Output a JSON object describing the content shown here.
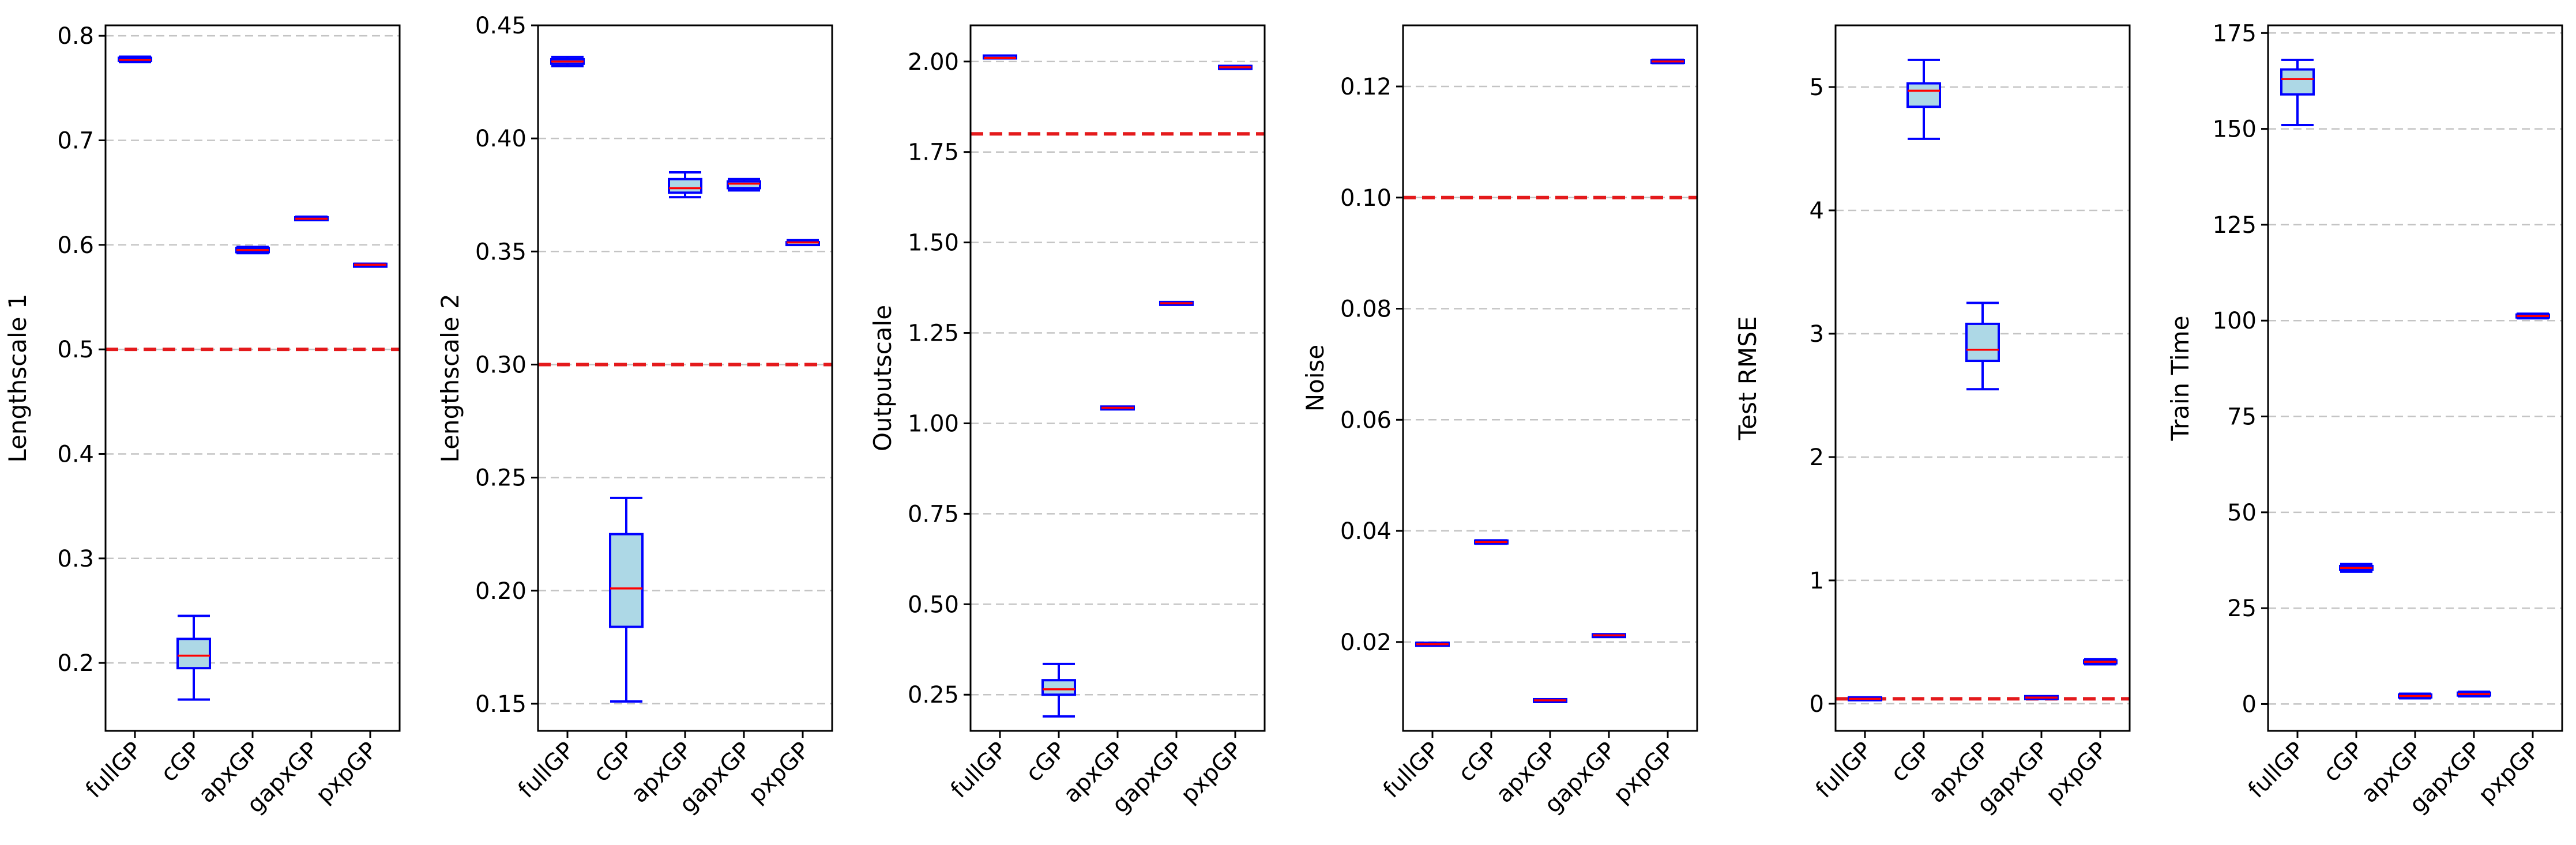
{
  "chart_data": [
    {
      "type": "box",
      "ylabel": "Lengthscale 1",
      "categories": [
        "fullGP",
        "cGP",
        "apxGP",
        "gapxGP",
        "pxpGP"
      ],
      "ylim": [
        0.135,
        0.81
      ],
      "yticks": [
        0.2,
        0.3,
        0.4,
        0.5,
        0.6,
        0.7,
        0.8
      ],
      "ytick_labels": [
        "0.2",
        "0.3",
        "0.4",
        "0.5",
        "0.6",
        "0.7",
        "0.8"
      ],
      "reference_line": 0.5,
      "boxes": [
        {
          "min": 0.775,
          "q1": 0.776,
          "median": 0.777,
          "q3": 0.779,
          "max": 0.78
        },
        {
          "min": 0.165,
          "q1": 0.195,
          "median": 0.207,
          "q3": 0.223,
          "max": 0.245
        },
        {
          "min": 0.592,
          "q1": 0.593,
          "median": 0.595,
          "q3": 0.597,
          "max": 0.598
        },
        {
          "min": 0.624,
          "q1": 0.624,
          "median": 0.625,
          "q3": 0.626,
          "max": 0.627
        },
        {
          "min": 0.58,
          "q1": 0.58,
          "median": 0.581,
          "q3": 0.581,
          "max": 0.582
        }
      ]
    },
    {
      "type": "box",
      "ylabel": "Lengthscale 2",
      "categories": [
        "fullGP",
        "cGP",
        "apxGP",
        "gapxGP",
        "pxpGP"
      ],
      "ylim": [
        0.138,
        0.45
      ],
      "yticks": [
        0.15,
        0.2,
        0.25,
        0.3,
        0.35,
        0.4,
        0.45
      ],
      "ytick_labels": [
        "0.15",
        "0.20",
        "0.25",
        "0.30",
        "0.35",
        "0.40",
        "0.45"
      ],
      "reference_line": 0.3,
      "boxes": [
        {
          "min": 0.432,
          "q1": 0.433,
          "median": 0.434,
          "q3": 0.435,
          "max": 0.436
        },
        {
          "min": 0.151,
          "q1": 0.184,
          "median": 0.201,
          "q3": 0.225,
          "max": 0.241
        },
        {
          "min": 0.374,
          "q1": 0.376,
          "median": 0.378,
          "q3": 0.382,
          "max": 0.385
        },
        {
          "min": 0.377,
          "q1": 0.378,
          "median": 0.38,
          "q3": 0.381,
          "max": 0.382
        },
        {
          "min": 0.353,
          "q1": 0.353,
          "median": 0.354,
          "q3": 0.354,
          "max": 0.355
        }
      ]
    },
    {
      "type": "box",
      "ylabel": "Outputscale",
      "categories": [
        "fullGP",
        "cGP",
        "apxGP",
        "gapxGP",
        "pxpGP"
      ],
      "ylim": [
        0.15,
        2.1
      ],
      "yticks": [
        0.25,
        0.5,
        0.75,
        1.0,
        1.25,
        1.5,
        1.75,
        2.0
      ],
      "ytick_labels": [
        "0.25",
        "0.50",
        "0.75",
        "1.00",
        "1.25",
        "1.50",
        "1.75",
        "2.00"
      ],
      "reference_line": 1.8,
      "boxes": [
        {
          "min": 2.01,
          "q1": 2.01,
          "median": 2.01,
          "q3": 2.015,
          "max": 2.015
        },
        {
          "min": 0.19,
          "q1": 0.25,
          "median": 0.265,
          "q3": 0.29,
          "max": 0.335
        },
        {
          "min": 1.04,
          "q1": 1.04,
          "median": 1.043,
          "q3": 1.045,
          "max": 1.045
        },
        {
          "min": 1.33,
          "q1": 1.33,
          "median": 1.332,
          "q3": 1.333,
          "max": 1.333
        },
        {
          "min": 1.98,
          "q1": 1.982,
          "median": 1.984,
          "q3": 1.986,
          "max": 1.988
        }
      ]
    },
    {
      "type": "box",
      "ylabel": "Noise",
      "categories": [
        "fullGP",
        "cGP",
        "apxGP",
        "gapxGP",
        "pxpGP"
      ],
      "ylim": [
        0.004,
        0.131
      ],
      "yticks": [
        0.02,
        0.04,
        0.06,
        0.08,
        0.1,
        0.12
      ],
      "ytick_labels": [
        "0.02",
        "0.04",
        "0.06",
        "0.08",
        "0.10",
        "0.12"
      ],
      "reference_line": 0.1,
      "boxes": [
        {
          "min": 0.0195,
          "q1": 0.0195,
          "median": 0.0196,
          "q3": 0.0197,
          "max": 0.0197
        },
        {
          "min": 0.0377,
          "q1": 0.0378,
          "median": 0.038,
          "q3": 0.0382,
          "max": 0.0383
        },
        {
          "min": 0.0094,
          "q1": 0.0094,
          "median": 0.0095,
          "q3": 0.0095,
          "max": 0.0096
        },
        {
          "min": 0.0211,
          "q1": 0.0211,
          "median": 0.0212,
          "q3": 0.0212,
          "max": 0.0213
        },
        {
          "min": 0.1242,
          "q1": 0.1243,
          "median": 0.1245,
          "q3": 0.1247,
          "max": 0.1248
        }
      ]
    },
    {
      "type": "box",
      "ylabel": "Test RMSE",
      "categories": [
        "fullGP",
        "cGP",
        "apxGP",
        "gapxGP",
        "pxpGP"
      ],
      "ylim": [
        -0.22,
        5.5
      ],
      "yticks": [
        0,
        1,
        2,
        3,
        4,
        5
      ],
      "ytick_labels": [
        "0",
        "1",
        "2",
        "3",
        "4",
        "5"
      ],
      "reference_line": 0.04,
      "boxes": [
        {
          "min": 0.03,
          "q1": 0.035,
          "median": 0.04,
          "q3": 0.045,
          "max": 0.05
        },
        {
          "min": 4.58,
          "q1": 4.84,
          "median": 4.97,
          "q3": 5.03,
          "max": 5.22
        },
        {
          "min": 2.55,
          "q1": 2.78,
          "median": 2.87,
          "q3": 3.08,
          "max": 3.25
        },
        {
          "min": 0.04,
          "q1": 0.045,
          "median": 0.05,
          "q3": 0.055,
          "max": 0.06
        },
        {
          "min": 0.32,
          "q1": 0.33,
          "median": 0.34,
          "q3": 0.35,
          "max": 0.36
        }
      ]
    },
    {
      "type": "box",
      "ylabel": "Train Time",
      "categories": [
        "fullGP",
        "cGP",
        "apxGP",
        "gapxGP",
        "pxpGP"
      ],
      "ylim": [
        -7,
        177
      ],
      "yticks": [
        0,
        25,
        50,
        75,
        100,
        125,
        150,
        175
      ],
      "ytick_labels": [
        "0",
        "25",
        "50",
        "75",
        "100",
        "125",
        "150",
        "175"
      ],
      "reference_line": null,
      "boxes": [
        {
          "min": 151,
          "q1": 159,
          "median": 163,
          "q3": 165.5,
          "max": 168
        },
        {
          "min": 34.5,
          "q1": 35,
          "median": 35.5,
          "q3": 36,
          "max": 36.5
        },
        {
          "min": 1.5,
          "q1": 1.8,
          "median": 2.1,
          "q3": 2.4,
          "max": 2.7
        },
        {
          "min": 2.0,
          "q1": 2.3,
          "median": 2.6,
          "q3": 2.9,
          "max": 3.2
        },
        {
          "min": 100.6,
          "q1": 100.9,
          "median": 101.2,
          "q3": 101.5,
          "max": 101.8
        }
      ]
    }
  ]
}
